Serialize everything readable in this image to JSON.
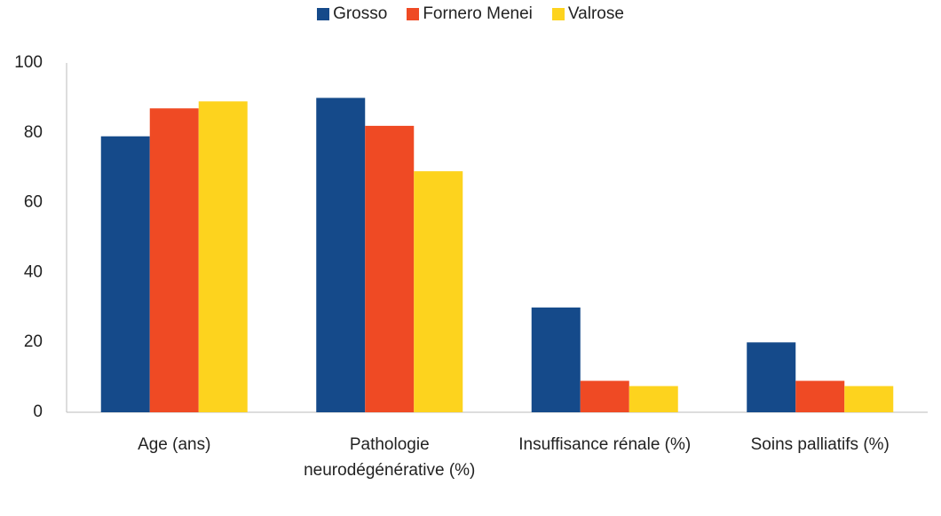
{
  "chart_data": {
    "type": "bar",
    "categories": [
      "Age (ans)",
      "Pathologie neurodégénérative (%)",
      "Insuffisance rénale (%)",
      "Soins palliatifs (%)"
    ],
    "series": [
      {
        "name": "Grosso",
        "color": "#154a8a",
        "values": [
          79,
          90,
          30,
          20
        ]
      },
      {
        "name": "Fornero Menei",
        "color": "#ef4a24",
        "values": [
          87,
          82,
          9,
          9
        ]
      },
      {
        "name": "Valrose",
        "color": "#fdd31e",
        "values": [
          89,
          69,
          7.5,
          7.5
        ]
      }
    ],
    "ylim": [
      0,
      100
    ],
    "yticks": [
      0,
      20,
      40,
      60,
      80,
      100
    ],
    "grid": false,
    "legend": "top"
  }
}
